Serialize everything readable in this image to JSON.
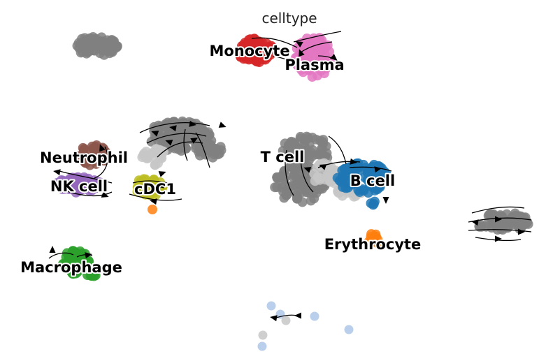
{
  "chart_data": {
    "type": "scatter",
    "title": "celltype",
    "xlabel": "",
    "ylabel": "",
    "grid": false,
    "legend": "on data",
    "series": [
      {
        "name": "Monocyte",
        "color": "#d62728"
      },
      {
        "name": "Plasma",
        "color": "#e377c2"
      },
      {
        "name": "Neutrophil",
        "color": "#8c564b"
      },
      {
        "name": "NK cell",
        "color": "#9467bd"
      },
      {
        "name": "cDC1",
        "color": "#bcbd22"
      },
      {
        "name": "T cell",
        "color": "#808080"
      },
      {
        "name": "B cell",
        "color": "#1f77b4"
      },
      {
        "name": "Erythrocyte",
        "color": "#ff7f0e"
      },
      {
        "name": "Macrophage",
        "color": "#2ca02c"
      }
    ],
    "unlabeled_colors": {
      "gray": "#808080",
      "light_gray": "#c7c7c7",
      "light_blue": "#aec7e8"
    },
    "overlay": "velocity streamlines with arrowheads"
  }
}
